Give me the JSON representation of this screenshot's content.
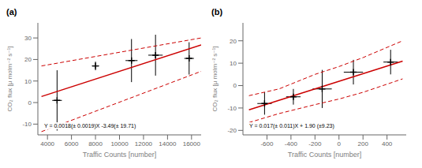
{
  "chart_data": [
    {
      "type": "scatter",
      "title": "(a)",
      "x_label": "Traffic Counts [number]",
      "y_label": "CO₂ flux [μ molm⁻² s⁻¹]",
      "annotations": [
        "Y = 0.0018(± 0.0019)X -3.49(± 19.71)"
      ],
      "xlim": [
        3200,
        16800
      ],
      "ylim": [
        -15,
        37
      ],
      "xticks": [
        4000,
        6000,
        8000,
        10000,
        12000,
        14000,
        16000
      ],
      "yticks": [
        -10,
        0,
        10,
        20,
        30
      ],
      "grid": false,
      "series": [
        {
          "type": "line",
          "line_style": "dashed",
          "color": "#cc0000",
          "x": [
            3500,
            16800
          ],
          "values": [
            17.0,
            30.0
          ]
        },
        {
          "type": "line",
          "line_style": "dashed",
          "color": "#cc0000",
          "x": [
            3500,
            16800
          ],
          "values": [
            -13.5,
            14.5
          ]
        },
        {
          "type": "line",
          "line_style": "solid",
          "color": "#cc0000",
          "x": [
            3500,
            16800
          ],
          "values": [
            2.81,
            26.75
          ]
        },
        {
          "type": "scatter",
          "marker": "plus",
          "color": "black",
          "x": [
            4800,
            8000,
            11000,
            13000,
            15800
          ],
          "values": [
            1.0,
            17.0,
            19.5,
            22.0,
            20.5
          ],
          "xerr": [
            400,
            300,
            500,
            600,
            400
          ],
          "yerr": [
            14.0,
            2.0,
            10.0,
            9.5,
            7.5
          ]
        }
      ]
    },
    {
      "type": "scatter",
      "title": "(b)",
      "x_label": "Traffic Counts [number]",
      "y_label": "CO₂ flux [μ molm⁻² s⁻¹]",
      "annotations": [
        "Y = 0.017(± 0.011)X + 1.90 (±9.23)"
      ],
      "xlim": [
        -800,
        560
      ],
      "ylim": [
        -22,
        28
      ],
      "xticks": [
        -600,
        -400,
        -200,
        0,
        200,
        400
      ],
      "yticks": [
        -20,
        -10,
        0,
        10,
        20
      ],
      "grid": false,
      "series": [
        {
          "type": "line",
          "line_style": "dashed",
          "color": "#cc0000",
          "x": [
            -750,
            -500,
            -200,
            0,
            200,
            530
          ],
          "values": [
            -4.5,
            -1.5,
            5.0,
            8.5,
            12.5,
            20.0
          ]
        },
        {
          "type": "line",
          "line_style": "dashed",
          "color": "#cc0000",
          "x": [
            -750,
            -500,
            -200,
            0,
            200,
            530
          ],
          "values": [
            -16.5,
            -12.5,
            -8.5,
            -6.0,
            -3.0,
            3.0
          ]
        },
        {
          "type": "line",
          "line_style": "solid",
          "color": "#cc0000",
          "x": [
            -750,
            530
          ],
          "values": [
            -10.85,
            10.91
          ]
        },
        {
          "type": "scatter",
          "marker": "plus",
          "color": "black",
          "x": [
            -620,
            -380,
            -140,
            120,
            430
          ],
          "values": [
            -8.0,
            -5.0,
            -1.5,
            6.0,
            10.5
          ],
          "xerr": [
            60,
            60,
            80,
            80,
            60
          ],
          "yerr": [
            5.0,
            3.5,
            8.5,
            5.5,
            5.5
          ]
        }
      ]
    }
  ]
}
